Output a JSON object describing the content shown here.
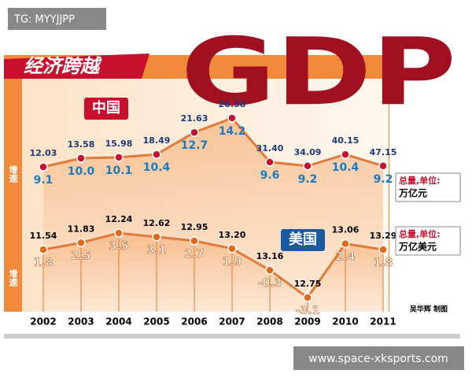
{
  "watermark": "TG: MYYJJPP",
  "banner": "经济跨越",
  "big_title": "GDP",
  "credit": "吴华辉 制图",
  "footer_url": "www.space-xksports.com",
  "chart_data": {
    "type": "line",
    "categories": [
      "2002",
      "2003",
      "2004",
      "2005",
      "2006",
      "2007",
      "2008",
      "2009",
      "2010",
      "2011"
    ],
    "growth_label": "增速",
    "series": [
      {
        "name": "中国",
        "color": "#c8102e",
        "values": [
          9.1,
          10.0,
          10.1,
          10.4,
          12.7,
          14.2,
          9.6,
          9.2,
          10.4,
          9.2
        ],
        "value_labels": [
          "9.1",
          "10.0",
          "10.1",
          "10.4",
          "12.7",
          "14.2",
          "9.6",
          "9.2",
          "10.4",
          "9.2"
        ],
        "totals": {
          "name": "总量,单位:",
          "unit": "万亿元",
          "values": [
            12.03,
            13.58,
            15.98,
            18.49,
            21.63,
            26.58,
            31.4,
            34.09,
            40.15,
            47.15
          ],
          "value_labels": [
            "12.03",
            "13.58",
            "15.98",
            "18.49",
            "21.63",
            "26.58",
            "31.40",
            "34.09",
            "40.15",
            "47.15"
          ]
        }
      },
      {
        "name": "美国",
        "color": "#e06a1a",
        "values": [
          1.8,
          2.5,
          3.5,
          3.1,
          2.7,
          1.9,
          -0.3,
          -3.1,
          2.4,
          1.8
        ],
        "value_labels": [
          "1.8",
          "2.5",
          "3.5",
          "3.1",
          "2.7",
          "1.9",
          "-0.3",
          "-3.1",
          "2.4",
          "1.8"
        ],
        "totals": {
          "name": "总量,单位:",
          "unit": "万亿美元",
          "values": [
            11.54,
            11.83,
            12.24,
            12.62,
            12.95,
            13.2,
            13.16,
            12.75,
            13.06,
            13.29
          ],
          "value_labels": [
            "11.54",
            "11.83",
            "12.24",
            "12.62",
            "12.95",
            "13.20",
            "13.16",
            "12.75",
            "13.06",
            "13.29"
          ]
        }
      }
    ]
  }
}
